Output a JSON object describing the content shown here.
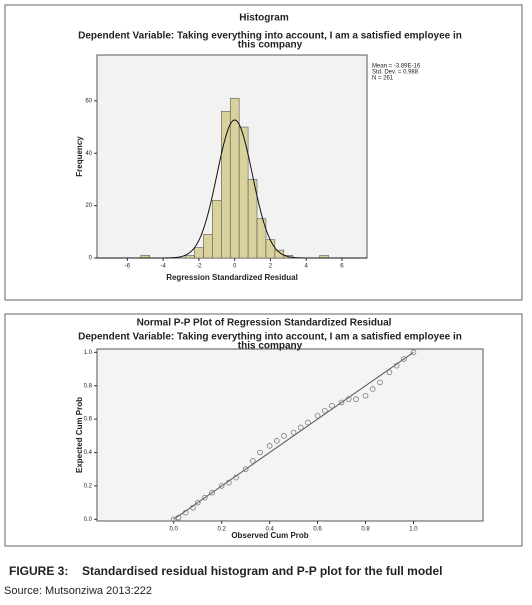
{
  "chart_data": [
    {
      "type": "histogram",
      "title": "Histogram",
      "subtitle": [
        "Dependent Variable: Taking everything into account, I am a satisfied employee in",
        "this company"
      ],
      "bins": [
        -5.25,
        -4.75,
        -4.25,
        -3.75,
        -3.25,
        -2.75,
        -2.25,
        -1.75,
        -1.25,
        -0.75,
        -0.25,
        0.25,
        0.75,
        1.25,
        1.75,
        2.25,
        2.75,
        3.25,
        3.75,
        4.25,
        4.75,
        5.25
      ],
      "values": [
        1,
        0,
        0,
        0,
        0,
        1,
        4,
        9,
        22,
        56,
        61,
        50,
        30,
        15,
        7,
        3,
        1,
        0,
        0,
        0,
        1
      ],
      "color": "#d9d29c",
      "normal_curve": {
        "mean": -3.89e-16,
        "std_dev": 0.988,
        "n": 261
      },
      "stats_text": [
        "Mean = -3.89E-16",
        "Std. Dev. = 0.988",
        "N = 261"
      ],
      "x_label": "Regression Standardized Residual",
      "y_label": "Frequency",
      "xlim": [
        -7.7,
        7.4
      ],
      "xticks": [
        -6,
        -4,
        -2,
        0,
        2,
        4,
        6
      ],
      "ylim": [
        0,
        77.5
      ],
      "yticks": [
        0,
        20,
        40,
        60
      ]
    },
    {
      "type": "scatter",
      "title": "Normal P-P Plot of Regression Standardized Residual",
      "subtitle": [
        "Dependent Variable: Taking everything into account, I am a satisfied employee in",
        "this company"
      ],
      "x": [
        0.0,
        0.02,
        0.05,
        0.08,
        0.1,
        0.13,
        0.16,
        0.2,
        0.23,
        0.26,
        0.3,
        0.33,
        0.36,
        0.4,
        0.43,
        0.46,
        0.5,
        0.53,
        0.56,
        0.6,
        0.63,
        0.66,
        0.7,
        0.73,
        0.76,
        0.8,
        0.83,
        0.86,
        0.9,
        0.93,
        0.96,
        1.0
      ],
      "values": [
        0.0,
        0.01,
        0.04,
        0.07,
        0.1,
        0.13,
        0.16,
        0.2,
        0.22,
        0.25,
        0.3,
        0.35,
        0.4,
        0.44,
        0.47,
        0.5,
        0.52,
        0.55,
        0.58,
        0.62,
        0.65,
        0.68,
        0.7,
        0.72,
        0.72,
        0.74,
        0.78,
        0.82,
        0.88,
        0.92,
        0.96,
        1.0
      ],
      "color": "#7a7a7a",
      "x_label": "Observed Cum Prob",
      "y_label": "Expected Cum Prob",
      "xlim": [
        -0.32,
        1.29
      ],
      "xticks": [
        {
          "value": 0,
          "label": "0.0"
        },
        {
          "value": 0.2,
          "label": "0.2"
        },
        {
          "value": 0.4,
          "label": "0.4"
        },
        {
          "value": 0.6,
          "label": "0.6"
        },
        {
          "value": 0.8,
          "label": "0.8"
        },
        {
          "value": 1,
          "label": "1.0"
        }
      ],
      "ylim": [
        -0.01,
        1.02
      ],
      "yticks": [
        {
          "value": 0,
          "label": "0.0"
        },
        {
          "value": 0.2,
          "label": "0.2"
        },
        {
          "value": 0.4,
          "label": "0.4"
        },
        {
          "value": 0.6,
          "label": "0.6"
        },
        {
          "value": 0.8,
          "label": "0.8"
        },
        {
          "value": 1,
          "label": "1.0"
        }
      ]
    }
  ],
  "caption": {
    "label": "FIGURE 3:",
    "text": "Standardised residual histogram and P-P plot for the full model",
    "source": "Source: Mutsonziwa 2013:222"
  }
}
